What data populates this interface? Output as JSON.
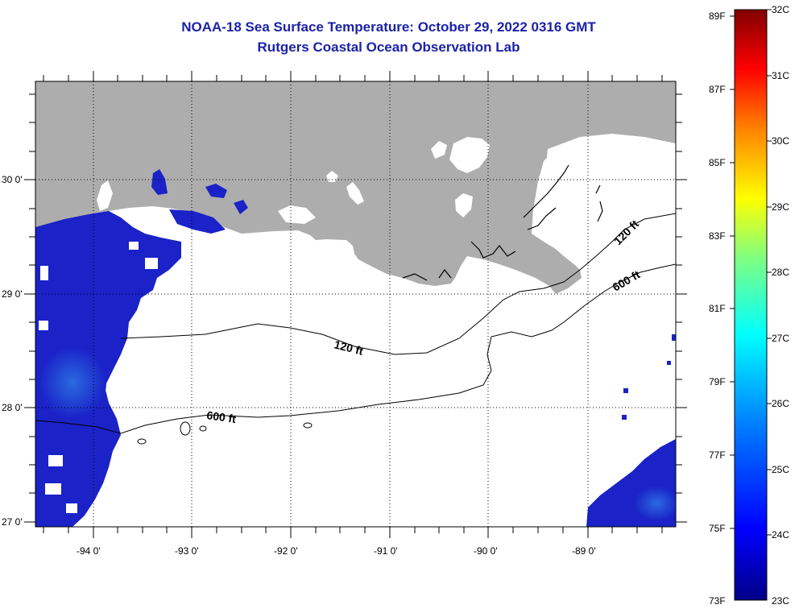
{
  "title": {
    "line1": "NOAA-18 Sea Surface Temperature:  October 29, 2022 0316 GMT",
    "line2": "Rutgers Coastal Ocean Observation Lab"
  },
  "axes": {
    "x_ticks": [
      "-94 0'",
      "-93 0'",
      "-92 0'",
      "-91 0'",
      "-90 0'",
      "-89 0'"
    ],
    "y_ticks": [
      "30 0'",
      "29 0'",
      "28 0'",
      "27 0'"
    ]
  },
  "contours": {
    "label_120_a": "120 ft",
    "label_120_b": "120 ft",
    "label_600_a": "600 ft",
    "label_600_b": "600 ft"
  },
  "colorbar": {
    "fahrenheit": [
      "89F",
      "87F",
      "85F",
      "83F",
      "81F",
      "79F",
      "77F",
      "75F",
      "73F"
    ],
    "celsius": [
      "32C",
      "31C",
      "30C",
      "29C",
      "28C",
      "27C",
      "26C",
      "25C",
      "24C",
      "23C"
    ],
    "colors": [
      "#000087",
      "#0000ff",
      "#0080ff",
      "#00ffff",
      "#80ff80",
      "#ffff00",
      "#ff8000",
      "#ff0000",
      "#800000"
    ]
  },
  "legend_colors": {
    "land": "#adadad",
    "ocean_water": "#1a22c8",
    "cloud_no_data": "#ffffff"
  }
}
